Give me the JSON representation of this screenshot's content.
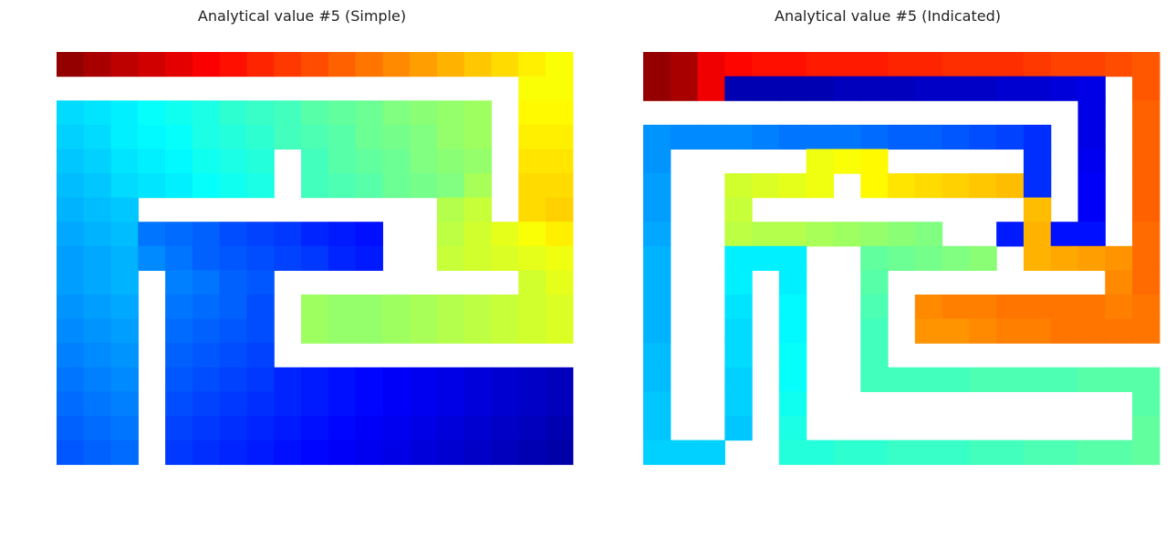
{
  "chart_data": [
    {
      "type": "heatmap",
      "title": "Analytical value #5 (Simple)",
      "colormap": "jet",
      "blank_color": "#ffffff",
      "value_range": [
        0,
        1
      ],
      "grid": [
        "0.98 0.96 0.94 0.92 0.90 0.88 0.86 0.84 0.82 0.80 0.78 0.76 0.74 0.72 0.70 0.68 0.66 0.64 0.62",
        "- - - - - - - - - - - - - - - - - 0.62 0.62",
        "0.34 0.35 0.36 0.38 0.39 0.40 0.42 0.43 0.44 0.46 0.47 0.48 0.50 0.51 0.52 0.53 - 0.63 0.63",
        "0.33 0.34 0.36 0.37 0.38 0.40 0.41 0.42 0.44 0.45 0.46 0.48 0.49 0.50 0.52 0.53 - 0.64 0.64",
        "0.32 0.33 0.35 0.36 0.37 0.39 0.40 0.41 - 0.44 0.46 0.47 0.48 0.50 0.51 0.52 - 0.65 0.65",
        "0.31 0.32 0.34 0.35 0.36 0.38 0.39 0.40 - 0.44 0.45 0.46 0.48 0.49 0.50 0.54 - 0.66 0.66",
        "0.30 0.31 0.32 - - - - - - - - - - - 0.55 0.57 - 0.66 0.67",
        "0.29 0.30 0.31 0.24 0.23 0.22 0.20 0.19 0.18 0.16 0.15 0.14 - - 0.56 0.58 0.60 0.62 0.64",
        "0.28 0.29 0.30 0.26 0.24 0.22 0.21 0.20 0.19 0.18 0.16 0.15 - - 0.57 0.58 0.59 0.60 0.61",
        "0.28 0.29 0.30 - 0.25 0.24 0.22 0.21 - - - - - - - - - 0.58 0.60",
        "0.27 0.28 0.29 - 0.24 0.23 0.22 0.20 - 0.53 0.52 0.52 0.53 0.54 0.55 0.56 0.57 0.58 0.59",
        "0.26 0.27 0.28 - 0.23 0.22 0.21 0.20 - 0.53 0.52 0.52 0.53 0.54 0.55 0.56 0.57 0.58 0.59",
        "0.25 0.26 0.27 - 0.22 0.21 0.20 0.19 - - - - - - - - - - -",
        "0.24 0.25 0.26 - 0.21 0.20 0.19 0.18 0.16 0.15 0.14 0.13 0.12 0.11 0.10 0.09 0.08 0.07 0.06",
        "0.23 0.24 0.25 - 0.20 0.19 0.18 0.17 0.16 0.15 0.14 0.13 0.12 0.11 0.10 0.09 0.08 0.07 0.06",
        "0.22 0.23 0.24 - 0.19 0.18 0.17 0.16 0.15 0.14 0.13 0.12 0.11 0.10 0.09 0.08 0.07 0.06 0.05",
        "0.21 0.22 0.23 - 0.18 0.17 0.16 0.15 0.14 0.13 0.12 0.11 0.10 0.09 0.08 0.07 0.06 0.05 0.04"
      ]
    },
    {
      "type": "heatmap",
      "title": "Analytical value #5 (Indicated)",
      "colormap": "jet",
      "blank_color": "#ffffff",
      "value_range": [
        0,
        1
      ],
      "grid": [
        "0.98 0.96 0.89 0.87 0.86 0.86 0.85 0.85 0.85 0.84 0.84 0.83 0.83 0.83 0.82 0.81 0.81 0.80 0.79",
        "0.98 0.96 0.89 0.05 0.05 0.05 0.05 0.06 0.06 0.06 0.07 0.07 0.07 0.08 0.08 0.09 0.10 - 0.79",
        "- - - - - - - - - - - - - - - - 0.10 - 0.78",
        "0.27 0.26 0.26 0.26 0.25 0.24 0.24 0.24 0.23 0.22 0.22 0.21 0.20 0.19 0.17 - 0.10 - 0.78",
        "0.27 - - - - - 0.61 0.62 0.63 - - - - - 0.17 - 0.11 - 0.78",
        "0.28 - - 0.58 0.59 0.60 0.61 - 0.63 0.65 0.66 0.67 0.68 0.69 0.17 - 0.12 - 0.78",
        "0.28 - - 0.57 - - - - - - - - - - 0.69 - 0.12 - 0.78",
        "0.29 - - 0.56 0.55 0.55 0.54 0.53 0.52 0.51 0.50 - - 0.15 0.70 0.14 0.14 - 0.77",
        "0.30 - - 0.36 0.36 0.36 - - 0.47 0.48 0.49 0.50 0.51 - 0.70 0.71 0.72 0.73 0.77",
        "0.30 - - 0.36 - 0.36 - - 0.46 - - - - - - - - 0.74 0.77",
        "0.30 - - 0.35 - 0.37 - - 0.45 - 0.74 0.75 0.75 0.76 0.76 0.76 0.76 0.75 0.76",
        "0.30 - - 0.34 - 0.37 - - 0.44 - 0.73 0.73 0.74 0.75 0.75 0.76 0.76 0.76 0.76",
        "0.31 - - 0.34 - 0.38 - - 0.44 - - - - - - - - - -",
        "0.31 - - 0.33 - 0.38 - - 0.44 0.44 0.44 0.44 0.45 0.45 0.45 0.45 0.46 0.46 0.46",
        "0.32 - - 0.33 - 0.39 - - - - - - - - - - - - 0.46",
        "0.32 - - 0.32 - 0.40 - - - - - - - - - - - - 0.47",
        "0.33 0.33 0.33 - - 0.41 0.41 0.42 0.42 0.43 0.43 0.43 0.44 0.44 0.45 0.45 0.46 0.46 0.47"
      ]
    }
  ]
}
